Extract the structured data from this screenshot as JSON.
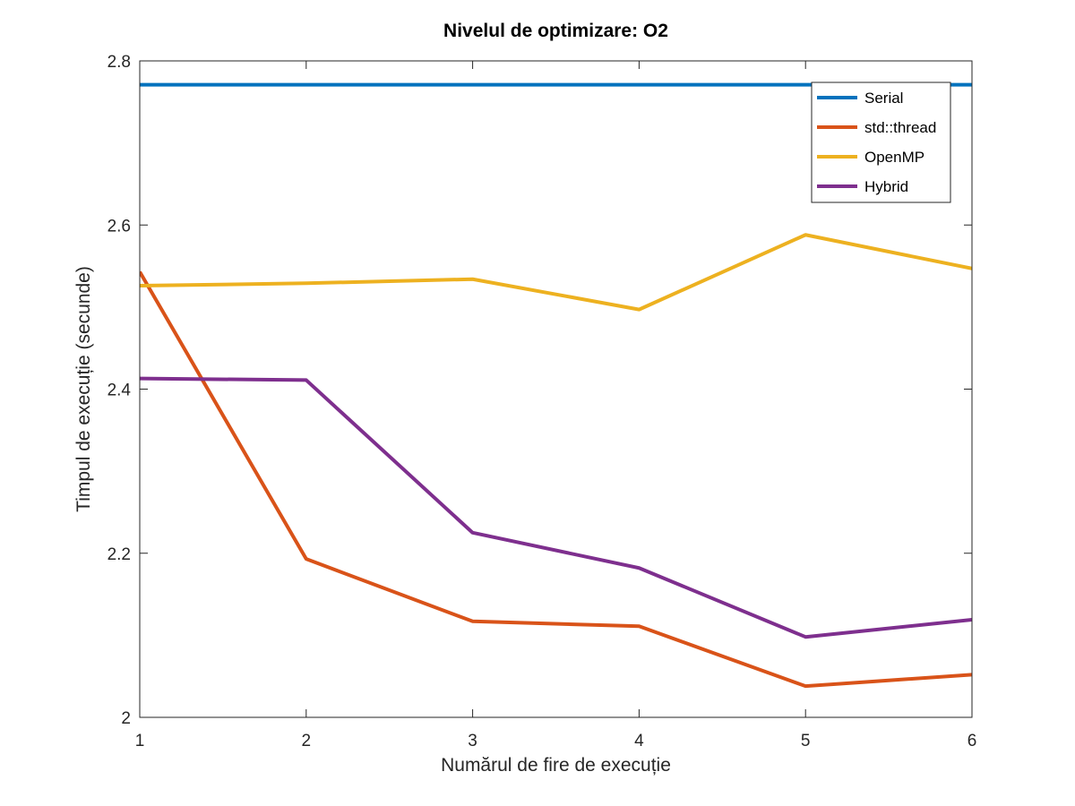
{
  "chart_data": {
    "type": "line",
    "title": "Nivelul de optimizare: O2",
    "xlabel": "Numărul de fire de execuție",
    "ylabel": "Timpul de execuție (secunde)",
    "x": [
      1,
      2,
      3,
      4,
      5,
      6
    ],
    "xlim": [
      1,
      6
    ],
    "ylim": [
      2,
      2.8
    ],
    "x_ticks": [
      1,
      2,
      3,
      4,
      5,
      6
    ],
    "y_ticks": [
      2,
      2.2,
      2.4,
      2.6,
      2.8
    ],
    "x_tick_labels": [
      "1",
      "2",
      "3",
      "4",
      "5",
      "6"
    ],
    "y_tick_labels": [
      "2",
      "2.2",
      "2.4",
      "2.6",
      "2.8"
    ],
    "grid": false,
    "legend_position": "top-right",
    "series": [
      {
        "name": "Serial",
        "color": "#0072BD",
        "values": [
          2.771,
          2.771,
          2.771,
          2.771,
          2.771,
          2.771
        ]
      },
      {
        "name": "std::thread",
        "color": "#D95319",
        "values": [
          2.543,
          2.193,
          2.117,
          2.111,
          2.038,
          2.052
        ]
      },
      {
        "name": "OpenMP",
        "color": "#EDB120",
        "values": [
          2.526,
          2.529,
          2.534,
          2.497,
          2.588,
          2.547
        ]
      },
      {
        "name": "Hybrid",
        "color": "#7E2F8E",
        "values": [
          2.413,
          2.411,
          2.225,
          2.182,
          2.098,
          2.119
        ]
      }
    ]
  }
}
